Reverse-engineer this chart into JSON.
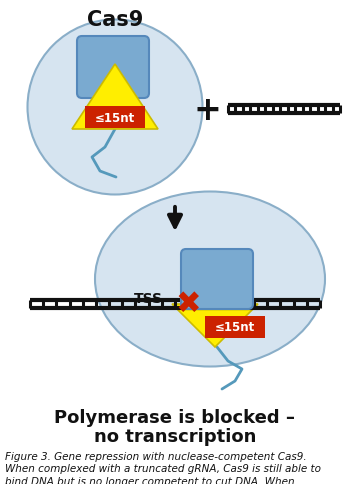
{
  "bg_color": "#ffffff",
  "title_line1": "Polymerase is blocked –",
  "title_line2": "no transcription",
  "title_fontsize": 13,
  "caption": "Figure 3. Gene repression with nuclease-competent Cas9.\nWhen complexed with a truncated gRNA, Cas9 is still able to\nbind DNA but is no longer competent to cut DNA. When\ndirected to a site downstream of the transcriptional start site\nof a gene of interest, Cas9 forms a steric block that prevents\nRNA polymerase from efficiently transcribing the gene. This\nresults in gene silencing, with no observed genetic alter-\nations at the target site.",
  "caption_fontsize": 7.5,
  "ellipse_color": "#d6e4f0",
  "ellipse_edge": "#8aaec8",
  "cas9_box_color": "#7aaad0",
  "cas9_box_edge": "#5588bb",
  "triangle_color": "#ffee00",
  "triangle_edge": "#ccbb00",
  "label_bg_color": "#cc2200",
  "label_text_color": "#ffffff",
  "dna_color": "#111111",
  "arrow_color": "#111111",
  "plus_color": "#111111",
  "tss_color": "#111111",
  "x_color": "#cc2200",
  "grna_tail_color": "#5599bb"
}
